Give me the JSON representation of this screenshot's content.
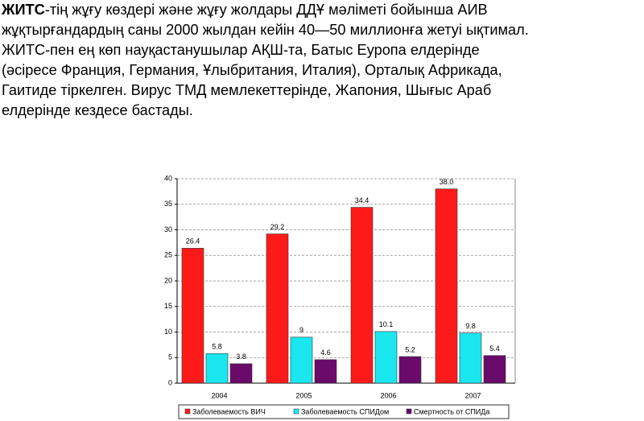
{
  "text": {
    "bold": "ЖИТС",
    "lines": [
      "-тің жұғу көздері және жұғу жолдары ДДҰ мәліметі бойынша АИВ",
      "жұқтырғандардың саны 2000 жылдан кейін 40—50 миллионға жетуі ықтимал.",
      "ЖИТС-пен ең көп науқастанушылар АҚШ-та, Батыс Еуропа елдерінде",
      "(әсіресе Франция, Германия, Ұлыбритания, Италия), Орталық Африкада,",
      "Гаитиде тіркелген. Вирус ТМД мемлекеттерінде, Жапония, Шығыс Араб",
      "елдерінде кездесе бастады."
    ]
  },
  "chart_data": {
    "type": "bar",
    "categories": [
      "2004",
      "2005",
      "2006",
      "2007"
    ],
    "series": [
      {
        "name": "Заболеваемость ВИЧ",
        "color": "#ff1a1a",
        "values": [
          26.4,
          29.2,
          34.4,
          38.0
        ],
        "value_labels": [
          "26.4",
          "29.2",
          "34.4",
          "38.0"
        ]
      },
      {
        "name": "Заболеваемость СПИДом",
        "color": "#1ae6f0",
        "values": [
          5.8,
          9,
          10.1,
          9.8
        ]
      },
      {
        "name": "Смертность от СПИДа",
        "color": "#6a0a6a",
        "values": [
          3.8,
          4.6,
          5.2,
          5.4
        ]
      }
    ],
    "ylim": [
      0,
      40
    ],
    "yticks": [
      0,
      5,
      10,
      15,
      20,
      25,
      30,
      35,
      40
    ],
    "grid": true
  }
}
